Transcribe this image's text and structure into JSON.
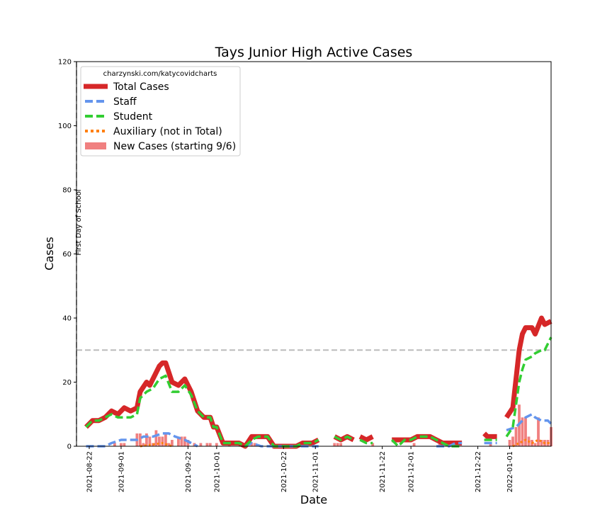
{
  "chart_data": {
    "type": "line",
    "title": "Tays Junior High Active Cases",
    "xlabel": "Date",
    "ylabel": "Cases",
    "ylim": [
      0,
      120
    ],
    "yticks": [
      0,
      20,
      40,
      60,
      80,
      100,
      120
    ],
    "xlim": [
      "2021-08-18",
      "2022-01-14"
    ],
    "xticks": [
      "2021-08-22",
      "2021-09-01",
      "2021-09-22",
      "2021-10-01",
      "2021-10-22",
      "2021-11-01",
      "2021-11-22",
      "2021-12-01",
      "2021-12-22",
      "2022-01-01"
    ],
    "hline": {
      "y": 30
    },
    "vline": {
      "date": "2021-08-18",
      "label": "First Day of School"
    },
    "legend": {
      "title": "charzynski.com/katycovidcharts",
      "position": "top-left",
      "entries": [
        "Total Cases",
        "Staff",
        "Student",
        "Auxiliary (not in Total)",
        "New Cases (starting 9/6)"
      ]
    },
    "colors": {
      "total": "#d62728",
      "staff": "#6495ed",
      "student": "#32cd32",
      "auxiliary": "#ff7f0e",
      "new_cases": "#f08080",
      "reference": "#bbbbbb"
    },
    "series": [
      {
        "name": "Total Cases",
        "segments": [
          [
            [
              "2021-08-21",
              6
            ],
            [
              "2021-08-23",
              8
            ],
            [
              "2021-08-25",
              8
            ],
            [
              "2021-08-27",
              9
            ],
            [
              "2021-08-29",
              11
            ],
            [
              "2021-08-31",
              10
            ],
            [
              "2021-09-02",
              12
            ],
            [
              "2021-09-04",
              11
            ],
            [
              "2021-09-06",
              12
            ],
            [
              "2021-09-07",
              17
            ],
            [
              "2021-09-09",
              20
            ],
            [
              "2021-09-10",
              19
            ],
            [
              "2021-09-11",
              21
            ],
            [
              "2021-09-13",
              25
            ],
            [
              "2021-09-14",
              26
            ],
            [
              "2021-09-15",
              26
            ],
            [
              "2021-09-17",
              20
            ],
            [
              "2021-09-19",
              19
            ],
            [
              "2021-09-21",
              21
            ],
            [
              "2021-09-23",
              17
            ],
            [
              "2021-09-25",
              11
            ],
            [
              "2021-09-27",
              9
            ],
            [
              "2021-09-29",
              9
            ],
            [
              "2021-09-30",
              6
            ],
            [
              "2021-10-01",
              6
            ],
            [
              "2021-10-03",
              1
            ],
            [
              "2021-10-05",
              1
            ],
            [
              "2021-10-08",
              1
            ],
            [
              "2021-10-10",
              0
            ],
            [
              "2021-10-12",
              3
            ],
            [
              "2021-10-15",
              3
            ],
            [
              "2021-10-17",
              3
            ],
            [
              "2021-10-19",
              0
            ],
            [
              "2021-10-22",
              0
            ],
            [
              "2021-10-26",
              0
            ],
            [
              "2021-10-28",
              1
            ],
            [
              "2021-10-31",
              1
            ],
            [
              "2021-11-02",
              2
            ]
          ],
          [
            [
              "2021-11-07",
              3
            ],
            [
              "2021-11-09",
              2
            ],
            [
              "2021-11-11",
              3
            ],
            [
              "2021-11-13",
              2
            ]
          ],
          [
            [
              "2021-11-15",
              3
            ],
            [
              "2021-11-17",
              2
            ],
            [
              "2021-11-19",
              3
            ]
          ],
          [
            [
              "2021-11-25",
              2
            ],
            [
              "2021-11-27",
              2
            ],
            [
              "2021-11-29",
              2
            ],
            [
              "2021-12-01",
              2
            ],
            [
              "2021-12-03",
              3
            ],
            [
              "2021-12-05",
              3
            ],
            [
              "2021-12-07",
              3
            ],
            [
              "2021-12-09",
              2
            ],
            [
              "2021-12-11",
              1
            ],
            [
              "2021-12-13",
              1
            ],
            [
              "2021-12-15",
              1
            ],
            [
              "2021-12-17",
              1
            ]
          ],
          [
            [
              "2021-12-24",
              4
            ],
            [
              "2021-12-25",
              3
            ],
            [
              "2021-12-27",
              3
            ],
            [
              "2021-12-28",
              3
            ]
          ],
          [
            [
              "2021-12-31",
              9
            ],
            [
              "2022-01-02",
              12
            ],
            [
              "2022-01-04",
              30
            ],
            [
              "2022-01-05",
              35
            ],
            [
              "2022-01-06",
              37
            ],
            [
              "2022-01-08",
              37
            ],
            [
              "2022-01-09",
              35
            ],
            [
              "2022-01-11",
              40
            ],
            [
              "2022-01-12",
              38
            ],
            [
              "2022-01-14",
              39
            ]
          ]
        ]
      },
      {
        "name": "Staff",
        "segments": [
          [
            [
              "2021-08-21",
              0
            ],
            [
              "2021-08-25",
              0
            ],
            [
              "2021-08-27",
              0
            ],
            [
              "2021-08-29",
              1
            ],
            [
              "2021-09-01",
              2
            ],
            [
              "2021-09-04",
              2
            ],
            [
              "2021-09-06",
              2
            ],
            [
              "2021-09-08",
              3
            ],
            [
              "2021-09-11",
              3
            ],
            [
              "2021-09-14",
              4
            ],
            [
              "2021-09-16",
              4
            ],
            [
              "2021-09-18",
              3
            ],
            [
              "2021-09-21",
              2
            ],
            [
              "2021-09-23",
              1
            ],
            [
              "2021-09-25",
              0
            ]
          ],
          [
            [
              "2021-10-10",
              0
            ],
            [
              "2021-10-12",
              1
            ],
            [
              "2021-10-15",
              0
            ],
            [
              "2021-11-02",
              0
            ]
          ],
          [
            [
              "2021-12-09",
              0
            ],
            [
              "2021-12-13",
              0
            ],
            [
              "2021-12-15",
              1
            ],
            [
              "2021-12-17",
              1
            ]
          ],
          [
            [
              "2021-12-24",
              1
            ],
            [
              "2021-12-26",
              1
            ],
            [
              "2021-12-28",
              1
            ]
          ],
          [
            [
              "2021-12-31",
              5
            ],
            [
              "2022-01-03",
              6
            ],
            [
              "2022-01-06",
              9
            ],
            [
              "2022-01-08",
              10
            ],
            [
              "2022-01-09",
              9
            ],
            [
              "2022-01-11",
              8
            ],
            [
              "2022-01-13",
              8
            ],
            [
              "2022-01-14",
              7
            ]
          ]
        ]
      },
      {
        "name": "Student",
        "segments": [
          [
            [
              "2021-08-21",
              6
            ],
            [
              "2021-08-23",
              8
            ],
            [
              "2021-08-25",
              8
            ],
            [
              "2021-08-27",
              9
            ],
            [
              "2021-08-29",
              10
            ],
            [
              "2021-08-31",
              9
            ],
            [
              "2021-09-02",
              9
            ],
            [
              "2021-09-04",
              9
            ],
            [
              "2021-09-06",
              10
            ],
            [
              "2021-09-07",
              15
            ],
            [
              "2021-09-09",
              17
            ],
            [
              "2021-09-11",
              18
            ],
            [
              "2021-09-13",
              21
            ],
            [
              "2021-09-15",
              22
            ],
            [
              "2021-09-17",
              17
            ],
            [
              "2021-09-19",
              17
            ],
            [
              "2021-09-21",
              19
            ],
            [
              "2021-09-23",
              16
            ],
            [
              "2021-09-25",
              11
            ],
            [
              "2021-09-27",
              9
            ],
            [
              "2021-09-29",
              9
            ],
            [
              "2021-09-30",
              6
            ],
            [
              "2021-10-01",
              6
            ],
            [
              "2021-10-03",
              1
            ],
            [
              "2021-10-05",
              1
            ],
            [
              "2021-10-08",
              1
            ],
            [
              "2021-10-10",
              0
            ],
            [
              "2021-10-12",
              2
            ],
            [
              "2021-10-14",
              3
            ],
            [
              "2021-10-17",
              3
            ],
            [
              "2021-10-19",
              0
            ],
            [
              "2021-10-22",
              0
            ],
            [
              "2021-10-26",
              0
            ],
            [
              "2021-10-28",
              1
            ],
            [
              "2021-10-31",
              1
            ],
            [
              "2021-11-02",
              2
            ]
          ],
          [
            [
              "2021-11-07",
              3
            ],
            [
              "2021-11-09",
              2
            ],
            [
              "2021-11-11",
              3
            ],
            [
              "2021-11-13",
              2
            ]
          ],
          [
            [
              "2021-11-15",
              2
            ],
            [
              "2021-11-17",
              1
            ],
            [
              "2021-11-19",
              1
            ]
          ],
          [
            [
              "2021-11-25",
              2
            ],
            [
              "2021-11-27",
              0
            ],
            [
              "2021-11-29",
              2
            ],
            [
              "2021-12-01",
              2
            ],
            [
              "2021-12-03",
              3
            ],
            [
              "2021-12-05",
              3
            ],
            [
              "2021-12-07",
              3
            ],
            [
              "2021-12-09",
              2
            ],
            [
              "2021-12-11",
              1
            ],
            [
              "2021-12-13",
              0
            ],
            [
              "2021-12-15",
              0
            ],
            [
              "2021-12-17",
              0
            ]
          ],
          [
            [
              "2021-12-24",
              2
            ],
            [
              "2021-12-25",
              2
            ],
            [
              "2021-12-27",
              2
            ],
            [
              "2021-12-28",
              2
            ]
          ],
          [
            [
              "2021-12-31",
              3
            ],
            [
              "2022-01-02",
              6
            ],
            [
              "2022-01-04",
              20
            ],
            [
              "2022-01-05",
              24
            ],
            [
              "2022-01-06",
              27
            ],
            [
              "2022-01-08",
              28
            ],
            [
              "2022-01-09",
              29
            ],
            [
              "2022-01-11",
              30
            ],
            [
              "2022-01-12",
              30
            ],
            [
              "2022-01-14",
              34
            ]
          ]
        ]
      },
      {
        "name": "Auxiliary (not in Total)",
        "segments": [
          [
            [
              "2021-09-07",
              0
            ],
            [
              "2021-09-14",
              1
            ],
            [
              "2021-09-17",
              0
            ]
          ],
          [
            [
              "2022-01-02",
              0
            ],
            [
              "2022-01-04",
              1
            ],
            [
              "2022-01-06",
              2
            ],
            [
              "2022-01-08",
              1
            ],
            [
              "2022-01-10",
              2
            ],
            [
              "2022-01-12",
              1
            ],
            [
              "2022-01-14",
              1
            ]
          ]
        ]
      }
    ],
    "new_cases": {
      "name": "New Cases (starting 9/6)",
      "points": [
        [
          "2021-08-24",
          0
        ],
        [
          "2021-08-25",
          0
        ],
        [
          "2021-08-26",
          0
        ],
        [
          "2021-08-30",
          1
        ],
        [
          "2021-09-01",
          1
        ],
        [
          "2021-09-02",
          1
        ],
        [
          "2021-09-06",
          4
        ],
        [
          "2021-09-07",
          4
        ],
        [
          "2021-09-08",
          1
        ],
        [
          "2021-09-09",
          4
        ],
        [
          "2021-09-10",
          3
        ],
        [
          "2021-09-11",
          1
        ],
        [
          "2021-09-12",
          5
        ],
        [
          "2021-09-13",
          3
        ],
        [
          "2021-09-14",
          3
        ],
        [
          "2021-09-15",
          4
        ],
        [
          "2021-09-16",
          1
        ],
        [
          "2021-09-17",
          2
        ],
        [
          "2021-09-19",
          3
        ],
        [
          "2021-09-20",
          3
        ],
        [
          "2021-09-21",
          3
        ],
        [
          "2021-09-22",
          2
        ],
        [
          "2021-09-24",
          1
        ],
        [
          "2021-09-26",
          1
        ],
        [
          "2021-09-28",
          1
        ],
        [
          "2021-09-29",
          1
        ],
        [
          "2021-10-01",
          1
        ],
        [
          "2021-10-05",
          1
        ],
        [
          "2021-10-12",
          1
        ],
        [
          "2021-10-13",
          1
        ],
        [
          "2021-10-27",
          1
        ],
        [
          "2021-10-28",
          1
        ],
        [
          "2021-11-07",
          1
        ],
        [
          "2021-11-08",
          1
        ],
        [
          "2021-11-09",
          1
        ],
        [
          "2021-11-19",
          1
        ],
        [
          "2021-12-02",
          1
        ],
        [
          "2021-12-10",
          1
        ],
        [
          "2021-12-26",
          1
        ],
        [
          "2022-01-01",
          2
        ],
        [
          "2022-01-02",
          3
        ],
        [
          "2022-01-03",
          6
        ],
        [
          "2022-01-04",
          13
        ],
        [
          "2022-01-05",
          9
        ],
        [
          "2022-01-06",
          9
        ],
        [
          "2022-01-07",
          3
        ],
        [
          "2022-01-08",
          2
        ],
        [
          "2022-01-09",
          1
        ],
        [
          "2022-01-10",
          9
        ],
        [
          "2022-01-11",
          2
        ],
        [
          "2022-01-12",
          2
        ],
        [
          "2022-01-13",
          2
        ],
        [
          "2022-01-14",
          6
        ]
      ]
    }
  }
}
